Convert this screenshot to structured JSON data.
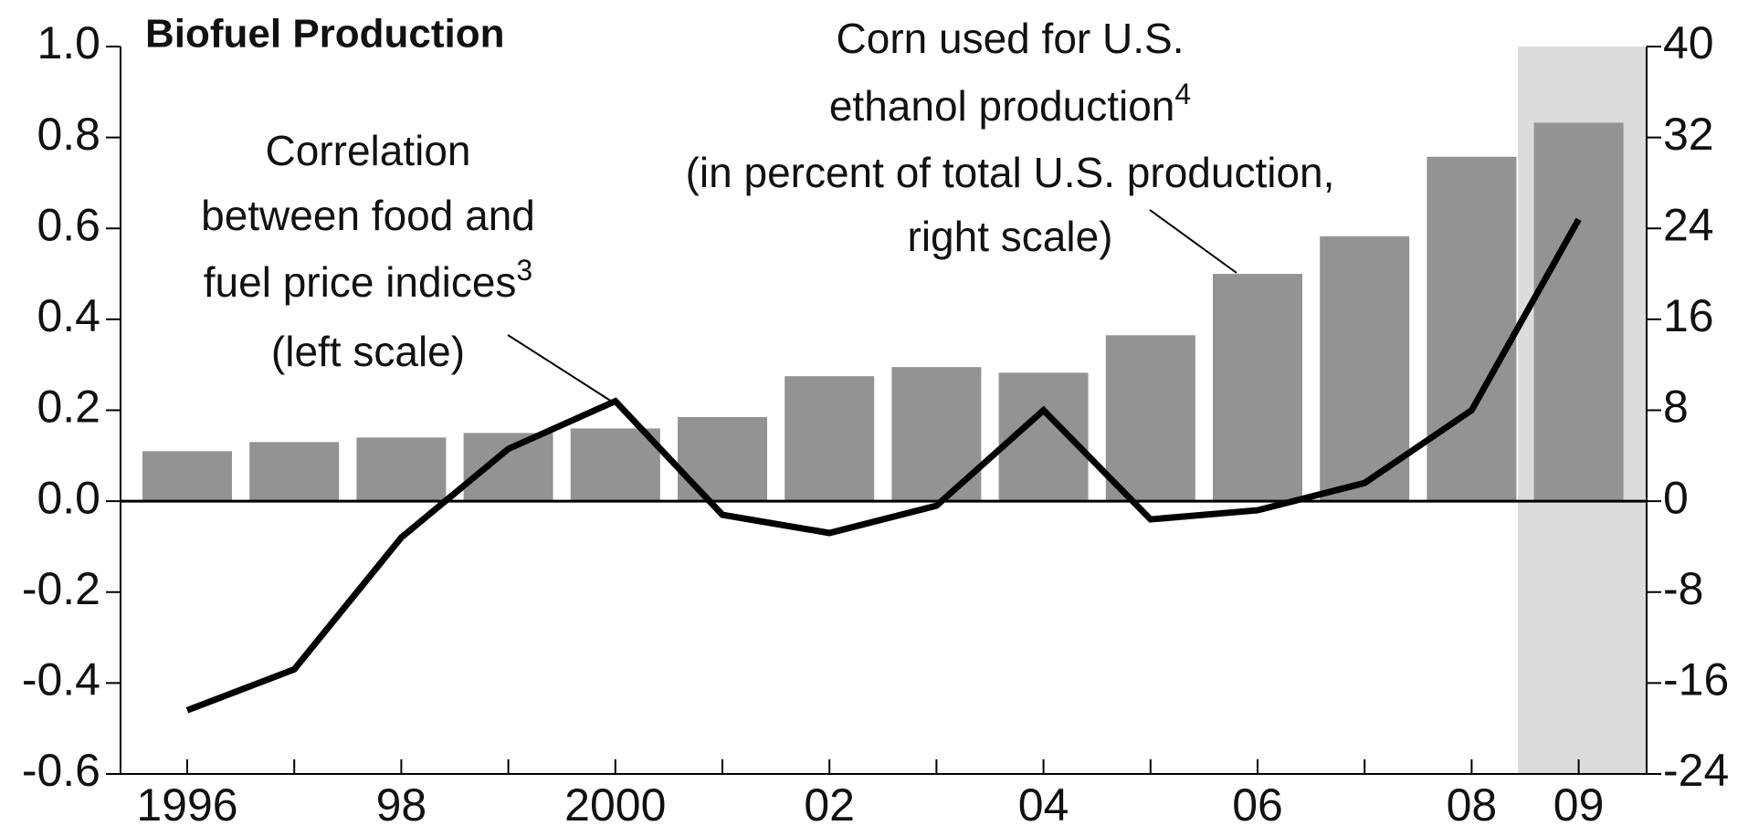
{
  "chart_data": {
    "type": "combo",
    "title": "Biofuel Production",
    "categories": [
      "1996",
      null,
      "98",
      null,
      "2000",
      null,
      "02",
      null,
      "04",
      null,
      "06",
      null,
      "08",
      "09"
    ],
    "series": [
      {
        "name": "Corn used for U.S. ethanol production",
        "type": "bar",
        "axis": "y2",
        "color": "#939393",
        "values": [
          4.4,
          5.2,
          5.6,
          6.0,
          6.4,
          7.4,
          11.0,
          11.8,
          11.3,
          14.6,
          20.0,
          23.3,
          30.3,
          33.3
        ]
      },
      {
        "name": "Correlation between food and fuel price indices",
        "type": "line",
        "axis": "y",
        "color": "#000000",
        "values": [
          -0.46,
          -0.37,
          -0.08,
          0.115,
          0.22,
          -0.03,
          -0.07,
          -0.01,
          0.2,
          -0.04,
          -0.02,
          0.04,
          0.2,
          0.62
        ]
      }
    ],
    "ylim": [
      -0.6,
      1.0
    ],
    "yticks": [
      {
        "value": 1.0,
        "label": "1.0"
      },
      0.8,
      0.6,
      0.4,
      0.2,
      {
        "value": 0,
        "label": "0.0"
      },
      -0.2,
      -0.4,
      -0.6
    ],
    "y2lim": [
      -24,
      40
    ],
    "y2ticks": [
      40,
      32,
      24,
      16,
      8,
      0,
      -8,
      -16,
      -24
    ],
    "highlight_categories": [
      13
    ],
    "highlight_color": "#dcdcdc",
    "annotations": [
      {
        "lines": [
          {
            "text": "Correlation"
          },
          {
            "text": "between food and"
          },
          {
            "text": "fuel price indices",
            "sup": "3"
          },
          {
            "text": "(left scale)"
          }
        ]
      },
      {
        "lines": [
          {
            "text": "Corn used for U.S."
          },
          {
            "text": "ethanol production",
            "sup": "4"
          },
          {
            "text": "(in percent of total U.S. production,"
          },
          {
            "text": "right scale)"
          }
        ]
      }
    ]
  }
}
